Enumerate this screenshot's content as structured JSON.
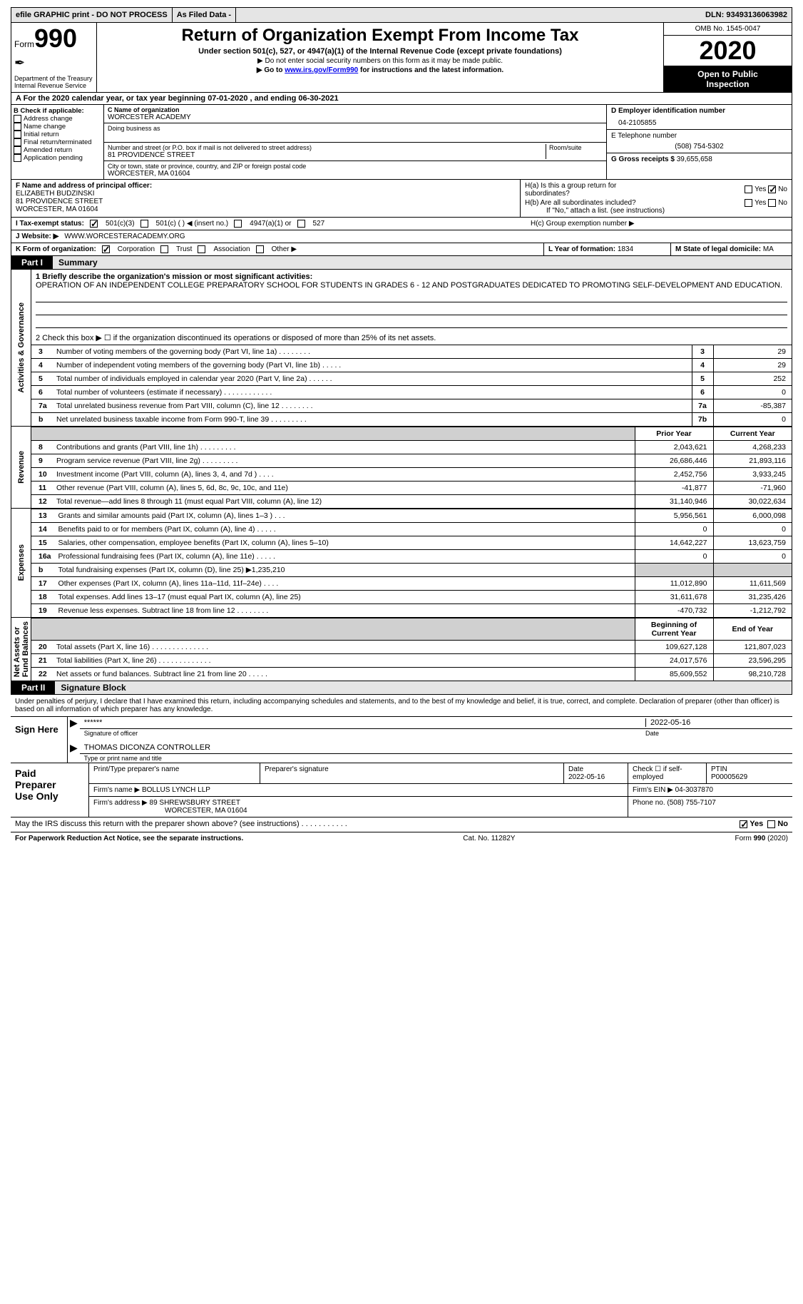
{
  "topbar": {
    "efile": "efile GRAPHIC print - DO NOT PROCESS",
    "asfiled": "As Filed Data -",
    "dln_label": "DLN:",
    "dln": "93493136063982"
  },
  "header": {
    "form_prefix": "Form",
    "form_no": "990",
    "dept": "Department of the Treasury\nInternal Revenue Service",
    "title": "Return of Organization Exempt From Income Tax",
    "sub1": "Under section 501(c), 527, or 4947(a)(1) of the Internal Revenue Code (except private foundations)",
    "sub2": "▶ Do not enter social security numbers on this form as it may be made public.",
    "sub3a": "▶ Go to ",
    "sub3_link": "www.irs.gov/Form990",
    "sub3b": " for instructions and the latest information.",
    "omb": "OMB No. 1545-0047",
    "year": "2020",
    "open": "Open to Public\nInspection"
  },
  "row_a": "A   For the 2020 calendar year, or tax year beginning 07-01-2020   , and ending 06-30-2021",
  "b": {
    "hdr": "B Check if applicable:",
    "items": [
      "Address change",
      "Name change",
      "Initial return",
      "Final return/terminated",
      "Amended return",
      "Application pending"
    ]
  },
  "c": {
    "name_lbl": "C Name of organization",
    "name": "WORCESTER ACADEMY",
    "dba_lbl": "Doing business as",
    "addr_lbl": "Number and street (or P.O. box if mail is not delivered to street address)",
    "room_lbl": "Room/suite",
    "addr": "81 PROVIDENCE STREET",
    "city_lbl": "City or town, state or province, country, and ZIP or foreign postal code",
    "city": "WORCESTER, MA  01604"
  },
  "d": {
    "ein_lbl": "D Employer identification number",
    "ein": "04-2105855",
    "tel_lbl": "E Telephone number",
    "tel": "(508) 754-5302",
    "gross_lbl": "G Gross receipts $",
    "gross": "39,655,658"
  },
  "f": {
    "lbl": "F  Name and address of principal officer:",
    "name": "ELIZABETH BUDZINSKI",
    "addr": "81 PROVIDENCE STREET",
    "city": "WORCESTER, MA  01604"
  },
  "h": {
    "a": "H(a)  Is this a group return for\n        subordinates?",
    "b": "H(b)  Are all subordinates included?",
    "b2": "If \"No,\" attach a list. (see instructions)",
    "c": "H(c)  Group exemption number ▶",
    "yes": "Yes",
    "no": "No"
  },
  "i": {
    "lbl": "I   Tax-exempt status:",
    "o1": "501(c)(3)",
    "o2": "501(c) (  ) ◀ (insert no.)",
    "o3": "4947(a)(1) or",
    "o4": "527"
  },
  "j": {
    "lbl": "J   Website: ▶",
    "val": "WWW.WORCESTERACADEMY.ORG"
  },
  "k": {
    "lbl": "K Form of organization:",
    "o1": "Corporation",
    "o2": "Trust",
    "o3": "Association",
    "o4": "Other ▶"
  },
  "l": {
    "lbl": "L Year of formation:",
    "val": "1834"
  },
  "m": {
    "lbl": "M State of legal domicile:",
    "val": "MA"
  },
  "part1": {
    "tab": "Part I",
    "title": "Summary"
  },
  "mission": {
    "lbl": "1 Briefly describe the organization's mission or most significant activities:",
    "text": "OPERATION OF AN INDEPENDENT COLLEGE PREPARATORY SCHOOL FOR STUDENTS IN GRADES 6 - 12 AND POSTGRADUATES DEDICATED TO PROMOTING SELF-DEVELOPMENT AND EDUCATION."
  },
  "line2": "2   Check this box ▶ ☐ if the organization discontinued its operations or disposed of more than 25% of its net assets.",
  "gov_rows": [
    {
      "n": "3",
      "t": "Number of voting members of the governing body (Part VI, line 1a)  .   .   .   .   .   .   .   .",
      "box": "3",
      "v": "29"
    },
    {
      "n": "4",
      "t": "Number of independent voting members of the governing body (Part VI, line 1b)  .   .   .   .   .",
      "box": "4",
      "v": "29"
    },
    {
      "n": "5",
      "t": "Total number of individuals employed in calendar year 2020 (Part V, line 2a)  .   .   .   .   .   .",
      "box": "5",
      "v": "252"
    },
    {
      "n": "6",
      "t": "Total number of volunteers (estimate if necessary)  .   .   .   .   .   .   .   .   .   .   .   .",
      "box": "6",
      "v": "0"
    },
    {
      "n": "7a",
      "t": "Total unrelated business revenue from Part VIII, column (C), line 12  .   .   .   .   .   .   .   .",
      "box": "7a",
      "v": "-85,387"
    },
    {
      "n": "b",
      "t": "Net unrelated business taxable income from Form 990-T, line 39  .   .   .   .   .   .   .   .   .",
      "box": "7b",
      "v": "0"
    }
  ],
  "col_hdr": {
    "prior": "Prior Year",
    "curr": "Current Year",
    "beg": "Beginning of Current Year",
    "end": "End of Year"
  },
  "rev_rows": [
    {
      "n": "8",
      "t": "Contributions and grants (Part VIII, line 1h)  .   .   .   .   .   .   .   .   .",
      "p": "2,043,621",
      "c": "4,268,233"
    },
    {
      "n": "9",
      "t": "Program service revenue (Part VIII, line 2g)  .   .   .   .   .   .   .   .   .",
      "p": "26,686,446",
      "c": "21,893,116"
    },
    {
      "n": "10",
      "t": "Investment income (Part VIII, column (A), lines 3, 4, and 7d )  .   .   .   .",
      "p": "2,452,756",
      "c": "3,933,245"
    },
    {
      "n": "11",
      "t": "Other revenue (Part VIII, column (A), lines 5, 6d, 8c, 9c, 10c, and 11e)",
      "p": "-41,877",
      "c": "-71,960"
    },
    {
      "n": "12",
      "t": "Total revenue—add lines 8 through 11 (must equal Part VIII, column (A), line 12)",
      "p": "31,140,946",
      "c": "30,022,634"
    }
  ],
  "exp_rows": [
    {
      "n": "13",
      "t": "Grants and similar amounts paid (Part IX, column (A), lines 1–3 )  .   .   .",
      "p": "5,956,561",
      "c": "6,000,098"
    },
    {
      "n": "14",
      "t": "Benefits paid to or for members (Part IX, column (A), line 4)  .   .   .   .   .",
      "p": "0",
      "c": "0"
    },
    {
      "n": "15",
      "t": "Salaries, other compensation, employee benefits (Part IX, column (A), lines 5–10)",
      "p": "14,642,227",
      "c": "13,623,759"
    },
    {
      "n": "16a",
      "t": "Professional fundraising fees (Part IX, column (A), line 11e)  .   .   .   .   .",
      "p": "0",
      "c": "0"
    },
    {
      "n": "b",
      "t": "Total fundraising expenses (Part IX, column (D), line 25) ▶1,235,210",
      "p": "",
      "c": "",
      "gray": true
    },
    {
      "n": "17",
      "t": "Other expenses (Part IX, column (A), lines 11a–11d, 11f–24e)  .   .   .   .",
      "p": "11,012,890",
      "c": "11,611,569"
    },
    {
      "n": "18",
      "t": "Total expenses. Add lines 13–17 (must equal Part IX, column (A), line 25)",
      "p": "31,611,678",
      "c": "31,235,426"
    },
    {
      "n": "19",
      "t": "Revenue less expenses. Subtract line 18 from line 12  .   .   .   .   .   .   .   .",
      "p": "-470,732",
      "c": "-1,212,792"
    }
  ],
  "net_rows": [
    {
      "n": "20",
      "t": "Total assets (Part X, line 16)  .   .   .   .   .   .   .   .   .   .   .   .   .   .",
      "p": "109,627,128",
      "c": "121,807,023"
    },
    {
      "n": "21",
      "t": "Total liabilities (Part X, line 26)  .   .   .   .   .   .   .   .   .   .   .   .   .",
      "p": "24,017,576",
      "c": "23,596,295"
    },
    {
      "n": "22",
      "t": "Net assets or fund balances. Subtract line 21 from line 20  .   .   .   .   .",
      "p": "85,609,552",
      "c": "98,210,728"
    }
  ],
  "vlabels": {
    "gov": "Activities & Governance",
    "rev": "Revenue",
    "exp": "Expenses",
    "net": "Net Assets or\nFund Balances"
  },
  "part2": {
    "tab": "Part II",
    "title": "Signature Block"
  },
  "sig": {
    "decl": "Under penalties of perjury, I declare that I have examined this return, including accompanying schedules and statements, and to the best of my knowledge and belief, it is true, correct, and complete. Declaration of preparer (other than officer) is based on all information of which preparer has any knowledge.",
    "sign_here": "Sign Here",
    "stars": "******",
    "sig_of": "Signature of officer",
    "name": "THOMAS DICONZA CONTROLLER",
    "name_lbl": "Type or print name and title",
    "date": "2022-05-16",
    "date_lbl": "Date"
  },
  "prep": {
    "hdr": "Paid\nPreparer\nUse Only",
    "c1": "Print/Type preparer's name",
    "c2": "Preparer's signature",
    "c3": "Date",
    "c3v": "2022-05-16",
    "c4": "Check ☐ if self-employed",
    "c5": "PTIN",
    "c5v": "P00005629",
    "firm_lbl": "Firm's name     ▶",
    "firm": "BOLLUS LYNCH LLP",
    "ein_lbl": "Firm's EIN ▶",
    "ein": "04-3037870",
    "addr_lbl": "Firm's address ▶",
    "addr": "89 SHREWSBURY STREET",
    "addr2": "WORCESTER, MA  01604",
    "phone_lbl": "Phone no.",
    "phone": "(508) 755-7107"
  },
  "discuss": "May the IRS discuss this return with the preparer shown above? (see instructions)  .   .   .   .   .   .   .   .   .   .   .",
  "footer": {
    "l": "For Paperwork Reduction Act Notice, see the separate instructions.",
    "m": "Cat. No. 11282Y",
    "r": "Form 990 (2020)"
  }
}
